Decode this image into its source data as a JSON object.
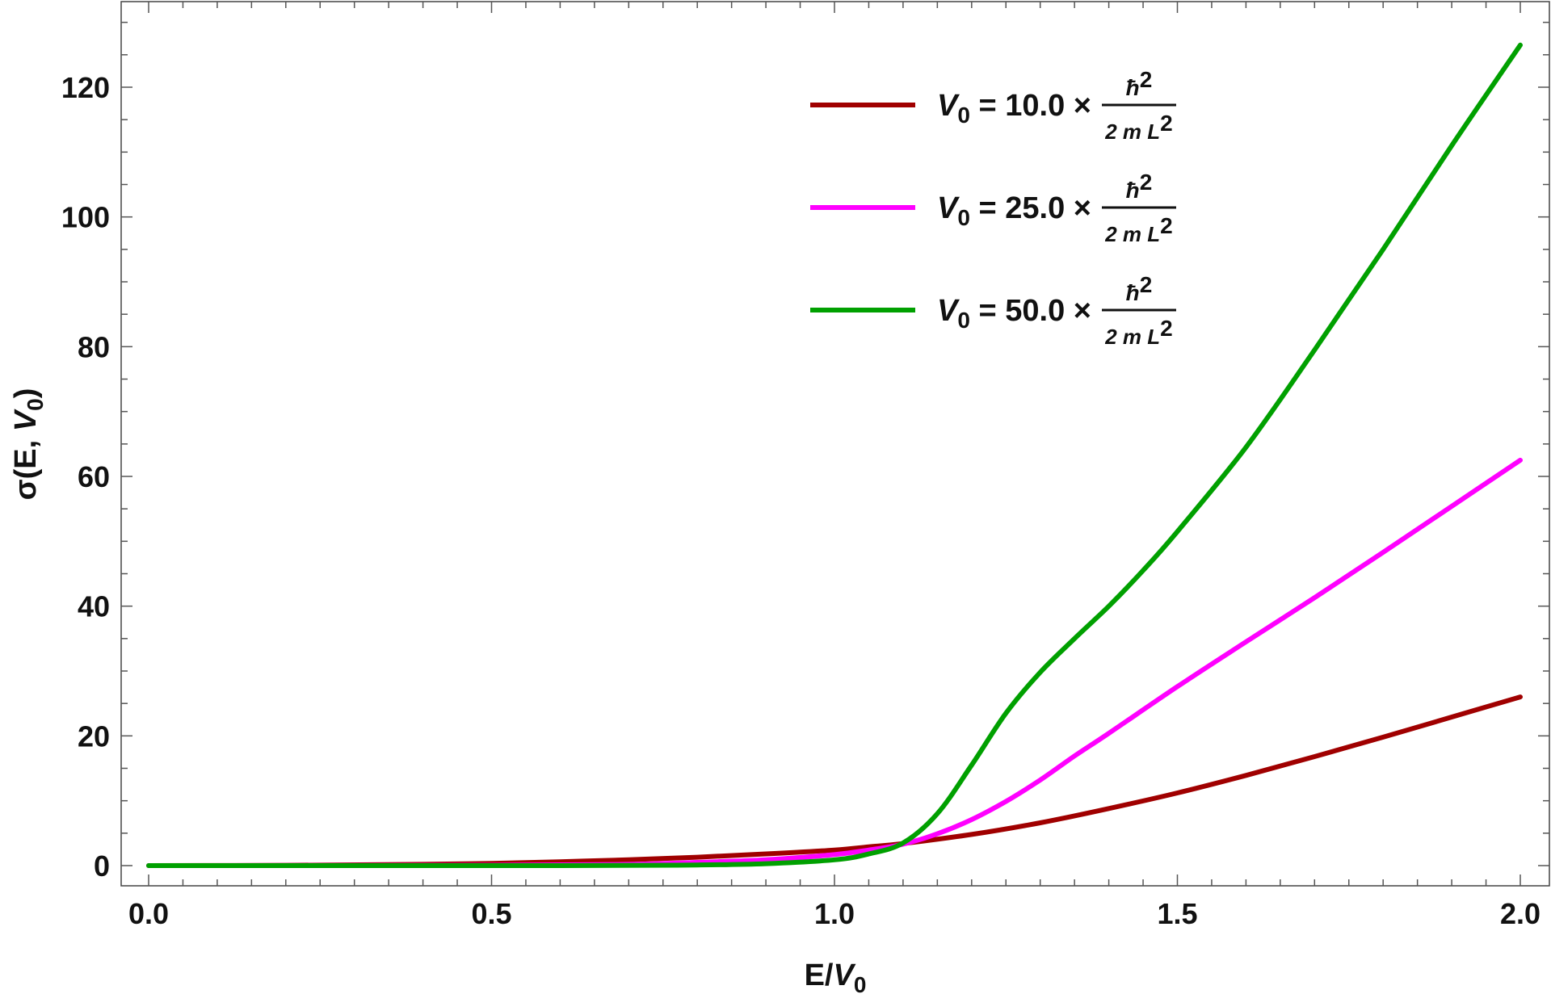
{
  "chart_data": {
    "type": "line",
    "xlabel": {
      "main": "E/",
      "var": "V",
      "sub": "0"
    },
    "ylabel": {
      "pre": "σ(E, ",
      "var": "V",
      "sub": "0",
      "post": ")"
    },
    "xlim": [
      0.0,
      2.0
    ],
    "ylim": [
      0,
      130
    ],
    "xticks": [
      "0.0",
      "0.5",
      "1.0",
      "1.5",
      "2.0"
    ],
    "yticks": [
      "0",
      "20",
      "40",
      "60",
      "80",
      "100",
      "120"
    ],
    "grid": false,
    "legend_position": "top-right",
    "series": [
      {
        "name": "V0 = 10.0 × ħ2 / 2 m L2",
        "legend": {
          "var": "V",
          "sub": "0",
          "eq": " = 10.0 ×",
          "num": "ħ",
          "num_sup": "2",
          "den": "2 m L",
          "den_sup": "2"
        },
        "color": "#a00000",
        "x": [
          0.0,
          0.2,
          0.4,
          0.5,
          0.6,
          0.7,
          0.8,
          0.9,
          1.0,
          1.05,
          1.1,
          1.2,
          1.3,
          1.4,
          1.5,
          1.6,
          1.7,
          1.8,
          1.9,
          2.0
        ],
        "y": [
          0.0,
          0.05,
          0.2,
          0.35,
          0.6,
          0.9,
          1.3,
          1.8,
          2.4,
          2.9,
          3.4,
          4.8,
          6.6,
          8.8,
          11.2,
          13.9,
          16.8,
          19.8,
          22.9,
          26.0
        ]
      },
      {
        "name": "V0 = 25.0 × ħ2 / 2 m L2",
        "legend": {
          "var": "V",
          "sub": "0",
          "eq": " = 25.0 ×",
          "num": "ħ",
          "num_sup": "2",
          "den": "2 m L",
          "den_sup": "2"
        },
        "color": "#ff00ff",
        "x": [
          0.0,
          0.5,
          0.7,
          0.8,
          0.9,
          1.0,
          1.05,
          1.1,
          1.15,
          1.2,
          1.25,
          1.3,
          1.35,
          1.4,
          1.5,
          1.6,
          1.7,
          1.8,
          1.9,
          2.0
        ],
        "y": [
          0.0,
          0.05,
          0.2,
          0.5,
          0.9,
          1.7,
          2.4,
          3.3,
          4.9,
          7.1,
          9.9,
          13.2,
          16.9,
          20.4,
          27.6,
          34.5,
          41.3,
          48.3,
          55.4,
          62.5
        ]
      },
      {
        "name": "V0 = 50.0 × ħ2 / 2 m L2",
        "legend": {
          "var": "V",
          "sub": "0",
          "eq": " = 50.0 ×",
          "num": "ħ",
          "num_sup": "2",
          "den": "2 m L",
          "den_sup": "2"
        },
        "color": "#00a000",
        "x": [
          0.0,
          0.6,
          0.8,
          0.9,
          1.0,
          1.05,
          1.1,
          1.15,
          1.2,
          1.25,
          1.3,
          1.35,
          1.4,
          1.45,
          1.5,
          1.6,
          1.7,
          1.8,
          1.9,
          2.0
        ],
        "y": [
          0.0,
          0.0,
          0.1,
          0.3,
          0.9,
          1.8,
          3.5,
          8.0,
          15.5,
          23.5,
          29.8,
          35.0,
          40.0,
          45.5,
          51.5,
          64.5,
          79.5,
          95.0,
          111.0,
          126.5
        ]
      }
    ]
  }
}
